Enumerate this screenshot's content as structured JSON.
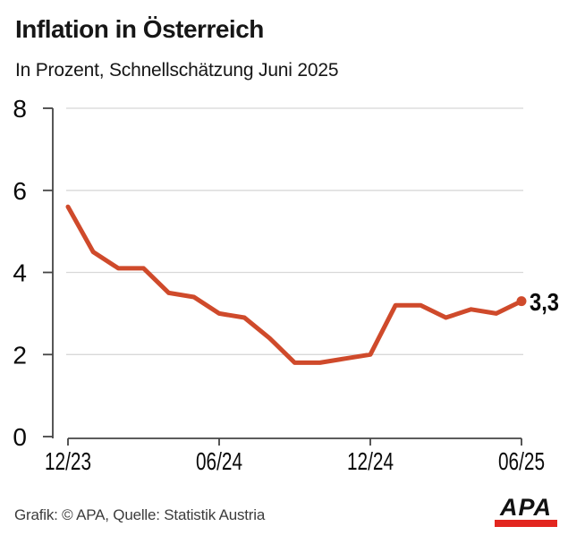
{
  "header": {
    "title": "Inflation in Österreich",
    "subtitle": "In Prozent, Schnellschätzung Juni 2025"
  },
  "chart_data": {
    "type": "line",
    "title": "Inflation in Österreich",
    "subtitle": "In Prozent, Schnellschätzung Juni 2025",
    "unit": "Prozent",
    "x": [
      "12/23",
      "01/24",
      "02/24",
      "03/24",
      "04/24",
      "05/24",
      "06/24",
      "07/24",
      "08/24",
      "09/24",
      "10/24",
      "11/24",
      "12/24",
      "01/25",
      "02/25",
      "03/25",
      "04/25",
      "05/25",
      "06/25"
    ],
    "values": [
      5.6,
      4.5,
      4.1,
      4.1,
      3.5,
      3.4,
      3.0,
      2.9,
      2.4,
      1.8,
      1.8,
      1.9,
      2.0,
      3.2,
      3.2,
      2.9,
      3.1,
      3.0,
      3.3
    ],
    "x_tick_labels": [
      "12/23",
      "06/24",
      "12/24",
      "06/25"
    ],
    "y_ticks": [
      0,
      2,
      4,
      6,
      8
    ],
    "ylim": [
      0,
      8
    ],
    "grid": "horizontal",
    "legend": "none",
    "line_color": "#cf4a2b",
    "grid_color": "#d8d8d8",
    "axis_color": "#444444",
    "end_point_label": "3,3"
  },
  "footer": {
    "credit": "Grafik: © APA, Quelle: Statistik Austria",
    "logo": {
      "text": "APA",
      "bar_color": "#e2261f"
    }
  }
}
